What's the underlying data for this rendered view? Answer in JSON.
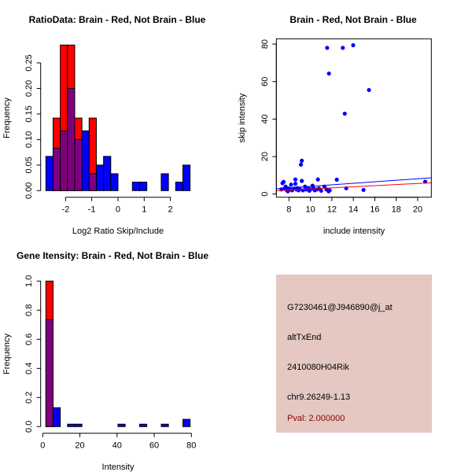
{
  "colors": {
    "brain": "#ff0000",
    "not_brain": "#0000ff",
    "overlap": "#7f007f",
    "info_bg": "#e5c8c2",
    "pval": "#8b0000"
  },
  "chart_data": [
    {
      "type": "bar",
      "title": "RatioData: Brain - Red, Not Brain - Blue",
      "xlabel": "Log2 Ratio Skip/Include",
      "ylabel": "Frequency",
      "bin_start": -2.75,
      "bin_width": 0.275,
      "xticks": [
        "-2",
        "-1",
        "0",
        "1",
        "2"
      ],
      "xtick_values": [
        -2,
        -1,
        0,
        1,
        2
      ],
      "yticks": [
        "0.00",
        "0.05",
        "0.10",
        "0.15",
        "0.20",
        "0.25"
      ],
      "ytick_values": [
        0,
        0.05,
        0.1,
        0.15,
        0.2,
        0.25
      ],
      "series": [
        {
          "name": "Brain",
          "color": "red",
          "values": [
            0,
            0.142,
            0.285,
            0.285,
            0.142,
            0,
            0.142,
            0,
            0,
            0,
            0,
            0,
            0,
            0,
            0,
            0,
            0,
            0,
            0,
            0
          ]
        },
        {
          "name": "Not Brain",
          "color": "blue",
          "values": [
            0.067,
            0.083,
            0.117,
            0.2,
            0.1,
            0.117,
            0.033,
            0.05,
            0.067,
            0.033,
            0,
            0,
            0.0167,
            0.0167,
            0,
            0,
            0.033,
            0,
            0.0167,
            0.05
          ]
        }
      ]
    },
    {
      "type": "scatter",
      "title": "Brain - Red, Not Brain - Blue",
      "xlabel": "include intensity",
      "ylabel": "skip intensity",
      "xlim": [
        6.8,
        21.25
      ],
      "ylim": [
        -1.4,
        84
      ],
      "xticks": [
        "8",
        "10",
        "12",
        "14",
        "16",
        "18",
        "20"
      ],
      "xtick_values": [
        8,
        10,
        12,
        14,
        16,
        18,
        20
      ],
      "yticks": [
        "0",
        "20",
        "40",
        "60",
        "80"
      ],
      "ytick_values": [
        0,
        20,
        40,
        60,
        80
      ],
      "points": [
        [
          11.56,
          78
        ],
        [
          11.73,
          64.3
        ],
        [
          13.02,
          78
        ],
        [
          13.99,
          79.4
        ],
        [
          13.2,
          42.9
        ],
        [
          15.46,
          55.5
        ],
        [
          9.12,
          15.7
        ],
        [
          9.2,
          17.8
        ],
        [
          12.46,
          7.7
        ],
        [
          14.95,
          2.2
        ],
        [
          20.7,
          6.6
        ],
        [
          13.34,
          3.1
        ],
        [
          7.3,
          2.5
        ],
        [
          7.4,
          5.8
        ],
        [
          7.5,
          6.5
        ],
        [
          7.6,
          3
        ],
        [
          7.7,
          4
        ],
        [
          7.8,
          2
        ],
        [
          7.9,
          1.5
        ],
        [
          8.0,
          3
        ],
        [
          8.1,
          2.5
        ],
        [
          8.2,
          5
        ],
        [
          8.3,
          2
        ],
        [
          8.5,
          3
        ],
        [
          8.6,
          7.8
        ],
        [
          8.6,
          5.5
        ],
        [
          8.7,
          2.5
        ],
        [
          8.8,
          3.2
        ],
        [
          8.9,
          2
        ],
        [
          9.0,
          2.8
        ],
        [
          9.2,
          7
        ],
        [
          9.3,
          2
        ],
        [
          9.5,
          4
        ],
        [
          9.6,
          2.5
        ],
        [
          9.8,
          3
        ],
        [
          9.9,
          1.8
        ],
        [
          10.0,
          2.5
        ],
        [
          10.2,
          4.5
        ],
        [
          10.3,
          3
        ],
        [
          10.4,
          2
        ],
        [
          10.6,
          2.5
        ],
        [
          10.7,
          7.8
        ],
        [
          10.8,
          3
        ],
        [
          11.0,
          1.8
        ],
        [
          11.3,
          4
        ],
        [
          11.5,
          2.5
        ],
        [
          11.7,
          1.5
        ],
        [
          11.8,
          2
        ]
      ],
      "lines": [
        {
          "name": "Not Brain fit",
          "color": "blue",
          "from": [
            6.8,
            2.8
          ],
          "to": [
            21.25,
            8.7
          ]
        },
        {
          "name": "Brain fit",
          "color": "red",
          "from": [
            6.8,
            1.8
          ],
          "to": [
            21.25,
            6.0
          ]
        }
      ]
    },
    {
      "type": "bar",
      "title": "Gene Itensity: Brain - Red, Not Brain - Blue",
      "xlabel": "Intensity",
      "ylabel": "Frequency",
      "bin_start": 1.7,
      "bin_width": 3.88,
      "xticks": [
        "0",
        "20",
        "40",
        "60",
        "80"
      ],
      "xtick_values": [
        0,
        20,
        40,
        60,
        80
      ],
      "yticks": [
        "0.0",
        "0.2",
        "0.4",
        "0.6",
        "0.8",
        "1.0"
      ],
      "ytick_values": [
        0,
        0.2,
        0.4,
        0.6,
        0.8,
        1.0
      ],
      "series": [
        {
          "name": "Brain",
          "color": "red",
          "values": [
            1.0,
            0,
            0,
            0,
            0,
            0,
            0,
            0,
            0,
            0,
            0,
            0,
            0,
            0,
            0,
            0,
            0,
            0,
            0,
            0
          ]
        },
        {
          "name": "Not Brain",
          "color": "blue",
          "values": [
            0.735,
            0.13,
            0,
            0.0167,
            0.0167,
            0,
            0,
            0,
            0,
            0,
            0.0167,
            0,
            0,
            0.0167,
            0,
            0,
            0.0167,
            0,
            0,
            0.05
          ]
        }
      ]
    }
  ],
  "info": {
    "probe": "G7230461@J946890@j_at",
    "event_type": "altTxEnd",
    "gene": "2410080H04Rik",
    "location": "chr9.26249-1.13",
    "pval": "Pval: 2.000000"
  }
}
